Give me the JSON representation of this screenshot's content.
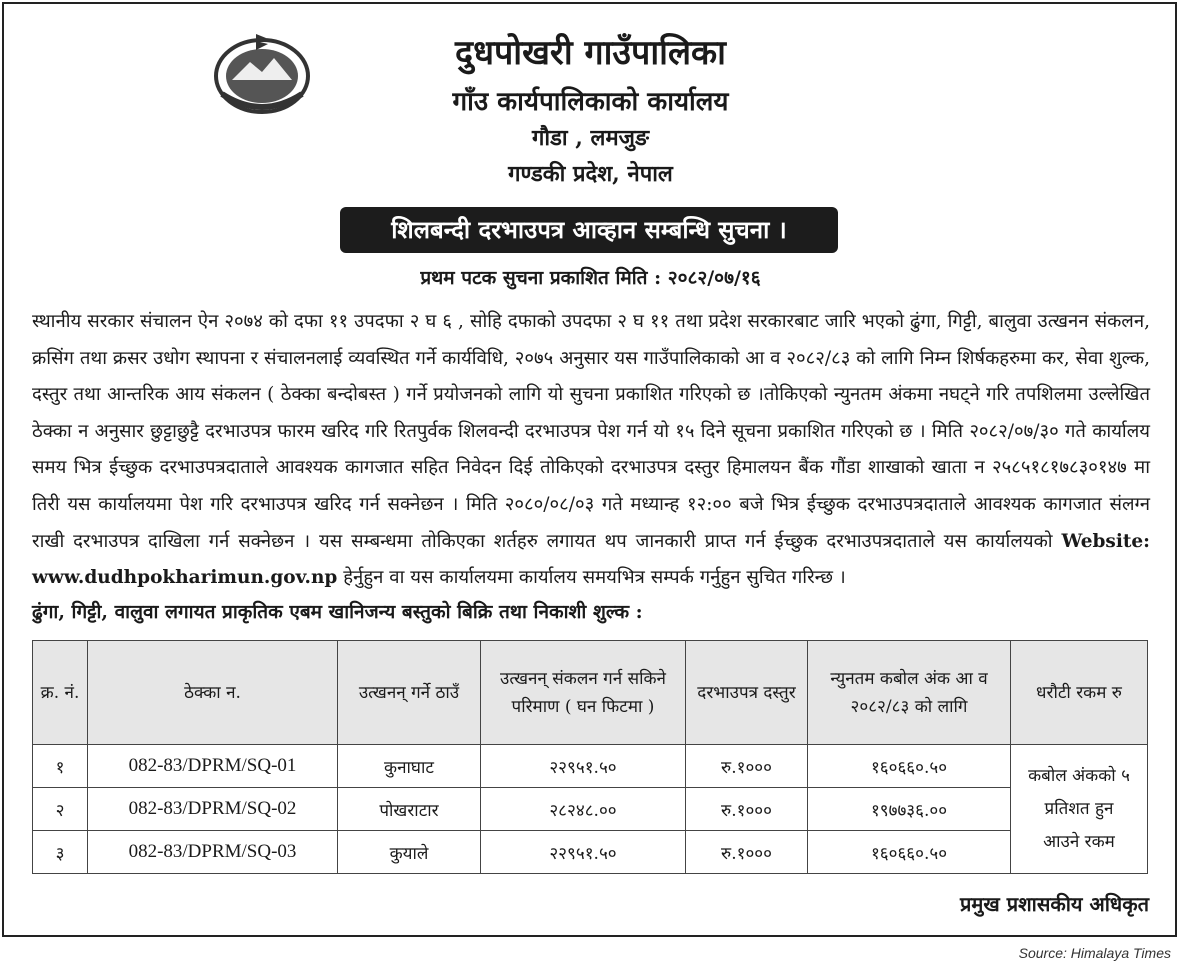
{
  "header": {
    "municipality": "दुधपोखरी गाउँपालिका",
    "office": "गाँउ कार्यपालिकाको कार्यालय",
    "location": "गौडा , लमजुङ",
    "province": "गण्डकी प्रदेश, नेपाल",
    "emblem": "government-of-nepal-emblem"
  },
  "notice": {
    "title": "शिलबन्दी दरभाउपत्र आव्हान सम्बन्धि सुचना ।",
    "published_date": "प्रथम पटक सुचना प्रकाशित मिति : २०८२/०७/१६",
    "body_before_website": "स्थानीय सरकार संचालन ऐन २०७४ को दफा ११ उपदफा २ घ ६ , सोहि दफाको उपदफा २ घ ११ तथा प्रदेश सरकारबाट जारि भएको ढुंगा, गिट्टी, बालुवा उत्खनन संकलन, क्रसिंग तथा क्रसर उधोग स्थापना र संचालनलाई व्यवस्थित गर्ने कार्यविधि, २०७५ अनुसार यस गाउँपालिकाको आ व २०८२/८३ को लागि निम्न शिर्षकहरुमा कर, सेवा शुल्क, दस्तुर तथा आन्तरिक आय संकलन ( ठेक्का बन्दोबस्त ) गर्ने प्रयोजनको लागि यो सुचना प्रकाशित गरिएको छ ।तोकिएको न्युनतम अंकमा नघट्ने गरि तपशिलमा उल्लेखित ठेक्का न अनुसार छुट्टाछुट्टै दरभाउपत्र फारम खरिद गरि रितपुर्वक शिलवन्दी दरभाउपत्र पेश गर्न यो १५ दिने सूचना प्रकाशित गरिएको छ । मिति २०८२/०७/३० गते कार्यालय समय भित्र ईच्छुक दरभाउपत्रदाताले आवश्यक कागजात सहित निवेदन दिई तोकिएको दरभाउपत्र दस्तुर हिमालयन बैंक गौंडा शाखाको खाता न २५८५१८१७८३०१४७ मा तिरी यस कार्यालयमा पेश गरि दरभाउपत्र खरिद गर्न सक्नेछन । मिति २०८०/०८/०३ गते मध्यान्ह १२:०० बजे भित्र ईच्छुक दरभाउपत्रदाताले आवश्यक कागजात संलग्न राखी दरभाउपत्र दाखिला गर्न सक्नेछन । यस सम्बन्धमा तोकिएका शर्तहरु लगायत थप जानकारी प्राप्त गर्न ईच्छुक दरभाउपत्रदाताले यस कार्यालयको ",
    "website": "Website: www.dudhpokharimun.gov.np",
    "body_after_website": " हेर्नुहुन वा यस कार्यालयमा कार्यालय समयभित्र सम्पर्क गर्नुहुन सुचित गरिन्छ ।",
    "table_heading": "ढुंगा, गिट्टी, वालुवा लगायत प्राकृतिक एबम खानिजन्य बस्तुको बिक्रि तथा निकाशी शुल्क :"
  },
  "table": {
    "headers": [
      "क्र. नं.",
      "ठेक्का न.",
      "उत्खनन् गर्ने ठाउँ",
      "उत्खनन् संकलन गर्न सकिने परिमाण ( घन फिटमा )",
      "दरभाउपत्र दस्तुर",
      "न्युनतम कबोल अंक आ व २०८२/८३ को लागि",
      "धरौटी रकम रु"
    ],
    "rows": [
      [
        "१",
        "082-83/DPRM/SQ-01",
        "कुनाघाट",
        "२२९५१.५०",
        "रु.१०००",
        "१६०६६०.५०"
      ],
      [
        "२",
        "082-83/DPRM/SQ-02",
        "पोखराटार",
        "२८२४८.००",
        "रु.१०००",
        "१९७७३६.००"
      ],
      [
        "३",
        "082-83/DPRM/SQ-03",
        "कुयाले",
        "२२९५१.५०",
        "रु.१०००",
        "१६०६६०.५०"
      ]
    ],
    "deposit": "कबोल अंकको ५ प्रतिशत हुन आउने रकम"
  },
  "signature": "प्रमुख प्रशासकीय अधिकृत",
  "source": "Source: Himalaya Times"
}
